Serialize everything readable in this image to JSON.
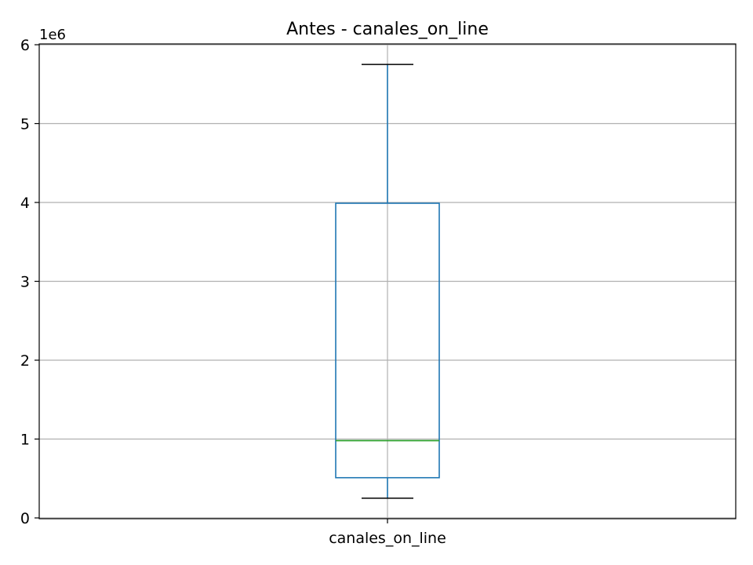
{
  "chart_data": {
    "type": "box",
    "title": "Antes - canales_on_line",
    "categories": [
      "canales_on_line"
    ],
    "xlabel": "",
    "ylabel": "",
    "y_offset_label": "1e6",
    "y_ticks": [
      0,
      1,
      2,
      3,
      4,
      5,
      6
    ],
    "ylim": [
      -0.01,
      6.01
    ],
    "grid": true,
    "box": {
      "whisker_low": 0.25,
      "q1": 0.51,
      "median": 0.98,
      "q3": 3.99,
      "whisker_high": 5.75
    },
    "colors": {
      "box": "#1f77b4",
      "median": "#2ca02c",
      "caps": "#000000",
      "grid": "#b0b0b0"
    }
  }
}
